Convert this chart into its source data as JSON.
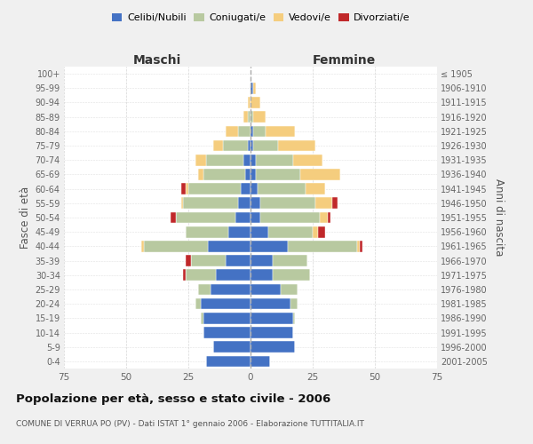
{
  "age_groups": [
    "0-4",
    "5-9",
    "10-14",
    "15-19",
    "20-24",
    "25-29",
    "30-34",
    "35-39",
    "40-44",
    "45-49",
    "50-54",
    "55-59",
    "60-64",
    "65-69",
    "70-74",
    "75-79",
    "80-84",
    "85-89",
    "90-94",
    "95-99",
    "100+"
  ],
  "birth_years": [
    "2001-2005",
    "1996-2000",
    "1991-1995",
    "1986-1990",
    "1981-1985",
    "1976-1980",
    "1971-1975",
    "1966-1970",
    "1961-1965",
    "1956-1960",
    "1951-1955",
    "1946-1950",
    "1941-1945",
    "1936-1940",
    "1931-1935",
    "1926-1930",
    "1921-1925",
    "1916-1920",
    "1911-1915",
    "1906-1910",
    "≤ 1905"
  ],
  "colors": {
    "celibi": "#4472C4",
    "coniugati": "#b8c9a0",
    "vedovi": "#f5cd7e",
    "divorziati": "#c0282a"
  },
  "male": {
    "celibi": [
      18,
      15,
      19,
      19,
      20,
      16,
      14,
      10,
      17,
      9,
      6,
      5,
      4,
      2,
      3,
      1,
      0,
      0,
      0,
      0,
      0
    ],
    "coniugati": [
      0,
      0,
      0,
      1,
      2,
      5,
      12,
      14,
      26,
      17,
      24,
      22,
      21,
      17,
      15,
      10,
      5,
      1,
      0,
      0,
      0
    ],
    "vedovi": [
      0,
      0,
      0,
      0,
      0,
      0,
      0,
      0,
      1,
      0,
      0,
      1,
      1,
      2,
      4,
      4,
      5,
      2,
      1,
      0,
      0
    ],
    "divorziati": [
      0,
      0,
      0,
      0,
      0,
      0,
      1,
      2,
      0,
      0,
      2,
      0,
      2,
      0,
      0,
      0,
      0,
      0,
      0,
      0,
      0
    ]
  },
  "female": {
    "nubili": [
      8,
      18,
      17,
      17,
      16,
      12,
      9,
      9,
      15,
      7,
      4,
      4,
      3,
      2,
      2,
      1,
      1,
      0,
      0,
      1,
      0
    ],
    "coniugate": [
      0,
      0,
      0,
      1,
      3,
      7,
      15,
      14,
      28,
      18,
      24,
      22,
      19,
      18,
      15,
      10,
      5,
      1,
      0,
      0,
      0
    ],
    "vedove": [
      0,
      0,
      0,
      0,
      0,
      0,
      0,
      0,
      1,
      2,
      3,
      7,
      8,
      16,
      12,
      15,
      12,
      5,
      4,
      1,
      0
    ],
    "divorziate": [
      0,
      0,
      0,
      0,
      0,
      0,
      0,
      0,
      1,
      3,
      1,
      2,
      0,
      0,
      0,
      0,
      0,
      0,
      0,
      0,
      0
    ]
  },
  "title": "Popolazione per età, sesso e stato civile - 2006",
  "subtitle": "COMUNE DI VERRUA PO (PV) - Dati ISTAT 1° gennaio 2006 - Elaborazione TUTTITALIA.IT",
  "xlabel_left": "Maschi",
  "xlabel_right": "Femmine",
  "ylabel_left": "Fasce di età",
  "ylabel_right": "Anni di nascita",
  "xlim": 75,
  "background_color": "#f0f0f0",
  "plot_background": "#ffffff",
  "grid_color": "#cccccc"
}
